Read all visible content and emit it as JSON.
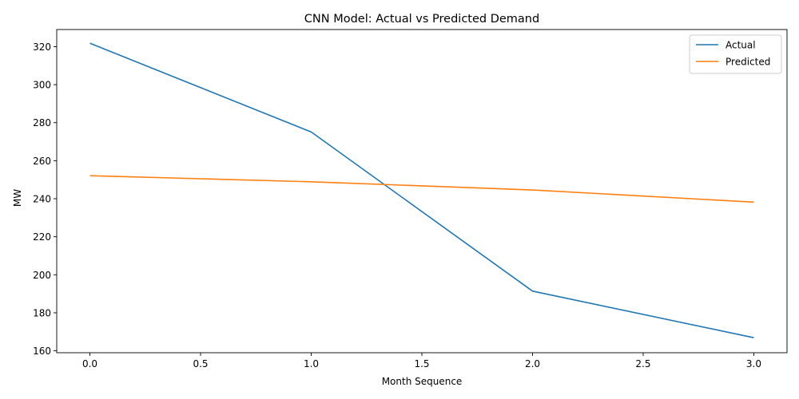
{
  "chart_data": {
    "type": "line",
    "title": "CNN Model: Actual vs Predicted Demand",
    "xlabel": "Month Sequence",
    "ylabel": "MW",
    "xlim": [
      -0.15,
      3.15
    ],
    "ylim": [
      159,
      329
    ],
    "xticks": [
      0.0,
      0.5,
      1.0,
      1.5,
      2.0,
      2.5,
      3.0
    ],
    "xtick_labels": [
      "0.0",
      "0.5",
      "1.0",
      "1.5",
      "2.0",
      "2.5",
      "3.0"
    ],
    "yticks": [
      160,
      180,
      200,
      220,
      240,
      260,
      280,
      300,
      320
    ],
    "ytick_labels": [
      "160",
      "180",
      "200",
      "220",
      "240",
      "260",
      "280",
      "300",
      "320"
    ],
    "grid": false,
    "legend_position": "top-right",
    "x": [
      0,
      1,
      2,
      3
    ],
    "series": [
      {
        "name": "Actual",
        "color": "#1f77b4",
        "values": [
          321.8,
          275.1,
          191.4,
          166.9
        ]
      },
      {
        "name": "Predicted",
        "color": "#ff7f0e",
        "values": [
          252.1,
          248.9,
          244.6,
          238.2
        ]
      }
    ]
  }
}
